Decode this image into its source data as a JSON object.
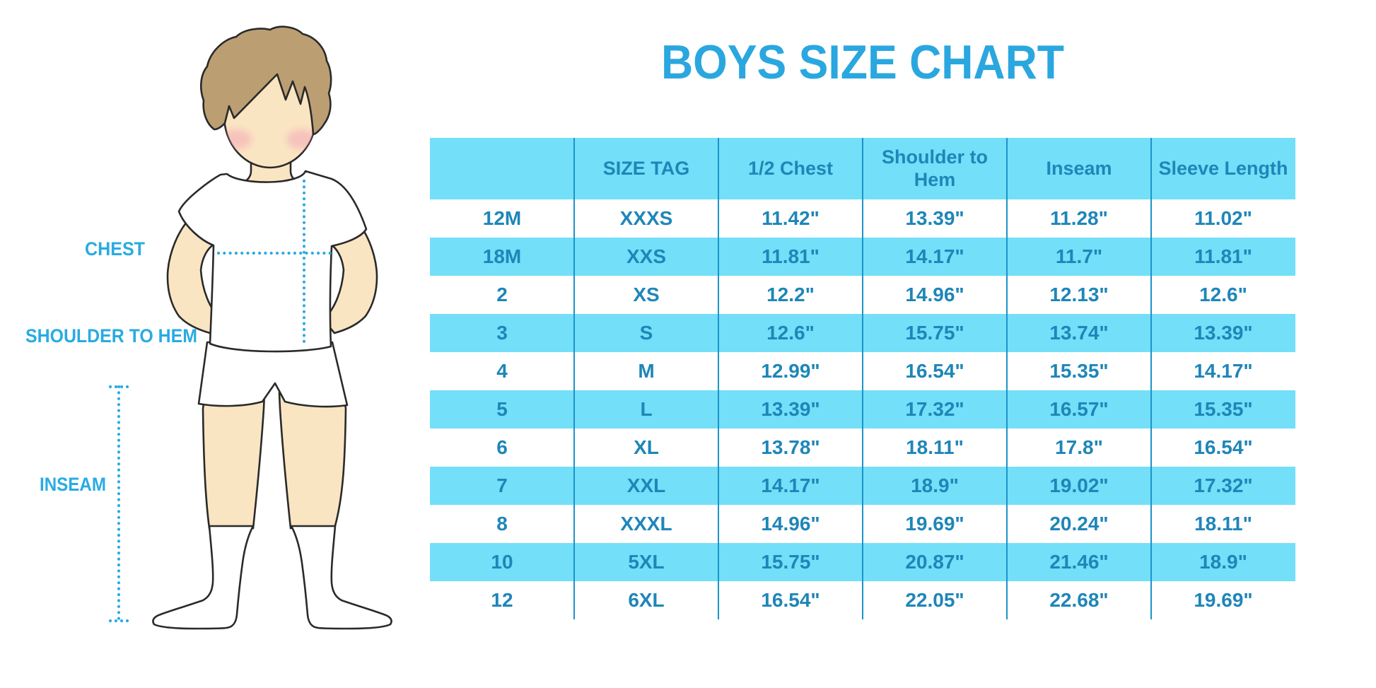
{
  "title": "BOYS SIZE CHART",
  "colors": {
    "cyan": "#73DFF8",
    "tabletext": "#1E86B8",
    "divider": "#1D93C8",
    "title": "#2AA7DF",
    "accent": "#29ABE2",
    "skin": "#FAE5C3",
    "hair": "#BC9E73",
    "blush": "#F2A0B5",
    "outline": "#2A2A2A",
    "garment": "#FFFFFF"
  },
  "figure": {
    "labels": {
      "chest": "CHEST",
      "shoulder_to_hem": "SHOULDER TO HEM",
      "inseam": "INSEAM"
    }
  },
  "chart_data": {
    "type": "table",
    "title": "BOYS SIZE CHART",
    "columns": [
      "",
      "SIZE TAG",
      "1/2 Chest",
      "Shoulder to Hem",
      "Inseam",
      "Sleeve Length"
    ],
    "rows": [
      {
        "cells": [
          "12M",
          "XXXS",
          "11.42\"",
          "13.39\"",
          "11.28\"",
          "11.02\""
        ]
      },
      {
        "cells": [
          "18M",
          "XXS",
          "11.81\"",
          "14.17\"",
          "11.7\"",
          "11.81\""
        ]
      },
      {
        "cells": [
          "2",
          "XS",
          "12.2\"",
          "14.96\"",
          "12.13\"",
          "12.6\""
        ]
      },
      {
        "cells": [
          "3",
          "S",
          "12.6\"",
          "15.75\"",
          "13.74\"",
          "13.39\""
        ]
      },
      {
        "cells": [
          "4",
          "M",
          "12.99\"",
          "16.54\"",
          "15.35\"",
          "14.17\""
        ]
      },
      {
        "cells": [
          "5",
          "L",
          "13.39\"",
          "17.32\"",
          "16.57\"",
          "15.35\""
        ]
      },
      {
        "cells": [
          "6",
          "XL",
          "13.78\"",
          "18.11\"",
          "17.8\"",
          "16.54\""
        ]
      },
      {
        "cells": [
          "7",
          "XXL",
          "14.17\"",
          "18.9\"",
          "19.02\"",
          "17.32\""
        ]
      },
      {
        "cells": [
          "8",
          "XXXL",
          "14.96\"",
          "19.69\"",
          "20.24\"",
          "18.11\""
        ]
      },
      {
        "cells": [
          "10",
          "5XL",
          "15.75\"",
          "20.87\"",
          "21.46\"",
          "18.9\""
        ]
      },
      {
        "cells": [
          "12",
          "6XL",
          "16.54\"",
          "22.05\"",
          "22.68\"",
          "19.69\""
        ]
      }
    ],
    "stripe_color_rows": "alternating white / light-cyan starting white at 12M; header light-cyan"
  }
}
